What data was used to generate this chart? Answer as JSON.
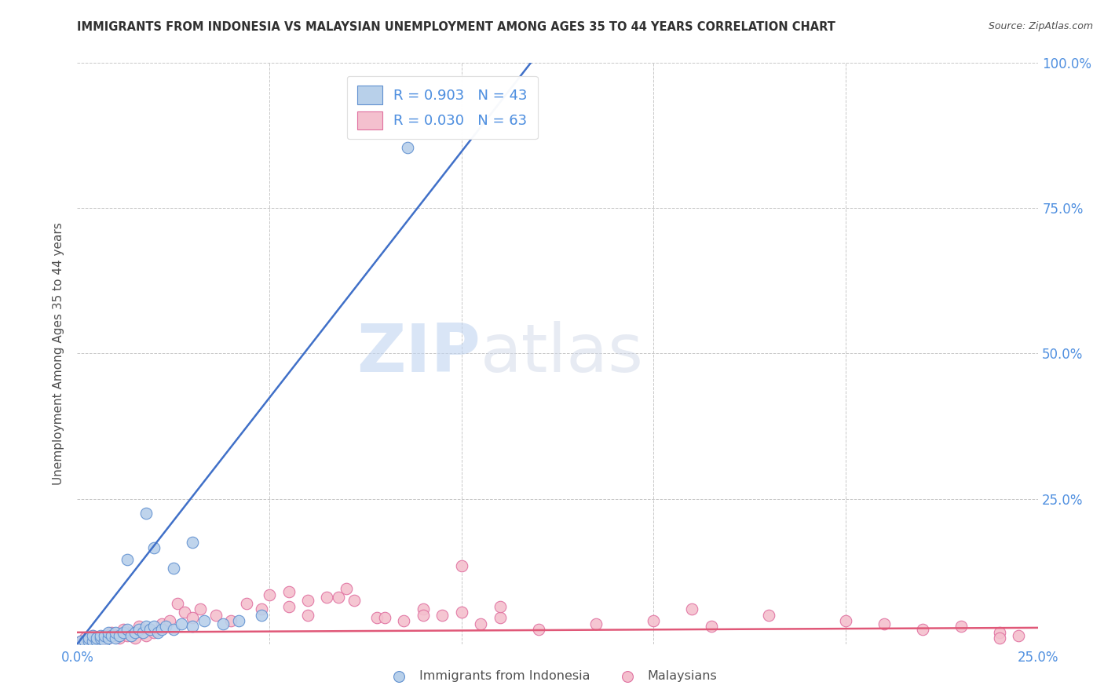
{
  "title": "IMMIGRANTS FROM INDONESIA VS MALAYSIAN UNEMPLOYMENT AMONG AGES 35 TO 44 YEARS CORRELATION CHART",
  "source": "Source: ZipAtlas.com",
  "ylabel": "Unemployment Among Ages 35 to 44 years",
  "xlim": [
    0.0,
    0.25
  ],
  "ylim": [
    0.0,
    1.0
  ],
  "watermark_zip": "ZIP",
  "watermark_atlas": "atlas",
  "legend_blue_label": "R = 0.903   N = 43",
  "legend_pink_label": "R = 0.030   N = 63",
  "legend_blue_color": "#b8d0ea",
  "legend_pink_color": "#f4c0ce",
  "blue_line_color": "#4070c8",
  "pink_line_color": "#e05878",
  "blue_scatter_facecolor": "#b8d0ea",
  "blue_scatter_edgecolor": "#6090d0",
  "pink_scatter_facecolor": "#f4c0ce",
  "pink_scatter_edgecolor": "#e070a0",
  "grid_color": "#c8c8c8",
  "background_color": "#ffffff",
  "title_color": "#303030",
  "axis_label_color": "#505050",
  "tick_color": "#5090e0",
  "blue_scatter_x": [
    0.001,
    0.002,
    0.003,
    0.003,
    0.004,
    0.004,
    0.005,
    0.005,
    0.006,
    0.006,
    0.007,
    0.007,
    0.008,
    0.008,
    0.009,
    0.01,
    0.01,
    0.011,
    0.012,
    0.013,
    0.014,
    0.015,
    0.016,
    0.017,
    0.018,
    0.019,
    0.02,
    0.021,
    0.022,
    0.023,
    0.025,
    0.027,
    0.03,
    0.033,
    0.038,
    0.042,
    0.048,
    0.013,
    0.02,
    0.025,
    0.03,
    0.018,
    0.086
  ],
  "blue_scatter_y": [
    0.005,
    0.005,
    0.005,
    0.01,
    0.005,
    0.015,
    0.005,
    0.01,
    0.01,
    0.015,
    0.005,
    0.015,
    0.01,
    0.02,
    0.015,
    0.01,
    0.02,
    0.015,
    0.02,
    0.025,
    0.015,
    0.02,
    0.025,
    0.02,
    0.03,
    0.025,
    0.03,
    0.02,
    0.025,
    0.03,
    0.025,
    0.035,
    0.03,
    0.04,
    0.035,
    0.04,
    0.05,
    0.145,
    0.165,
    0.13,
    0.175,
    0.225,
    0.855
  ],
  "pink_scatter_x": [
    0.001,
    0.002,
    0.003,
    0.004,
    0.005,
    0.006,
    0.007,
    0.008,
    0.009,
    0.01,
    0.011,
    0.012,
    0.013,
    0.014,
    0.015,
    0.016,
    0.017,
    0.018,
    0.019,
    0.02,
    0.022,
    0.024,
    0.026,
    0.028,
    0.03,
    0.032,
    0.036,
    0.04,
    0.044,
    0.048,
    0.055,
    0.06,
    0.068,
    0.072,
    0.078,
    0.085,
    0.09,
    0.095,
    0.1,
    0.105,
    0.11,
    0.12,
    0.135,
    0.15,
    0.165,
    0.18,
    0.2,
    0.21,
    0.22,
    0.23,
    0.24,
    0.245,
    0.05,
    0.055,
    0.06,
    0.065,
    0.07,
    0.08,
    0.09,
    0.1,
    0.11,
    0.16,
    0.24
  ],
  "pink_scatter_y": [
    0.005,
    0.01,
    0.005,
    0.015,
    0.01,
    0.005,
    0.015,
    0.01,
    0.02,
    0.015,
    0.01,
    0.025,
    0.015,
    0.02,
    0.01,
    0.03,
    0.02,
    0.015,
    0.025,
    0.02,
    0.035,
    0.04,
    0.07,
    0.055,
    0.045,
    0.06,
    0.05,
    0.04,
    0.07,
    0.06,
    0.065,
    0.05,
    0.08,
    0.075,
    0.045,
    0.04,
    0.06,
    0.05,
    0.055,
    0.035,
    0.045,
    0.025,
    0.035,
    0.04,
    0.03,
    0.05,
    0.04,
    0.035,
    0.025,
    0.03,
    0.02,
    0.015,
    0.085,
    0.09,
    0.075,
    0.08,
    0.095,
    0.045,
    0.05,
    0.135,
    0.065,
    0.06,
    0.01
  ],
  "blue_line_x": [
    0.0,
    0.118
  ],
  "blue_line_y": [
    0.0,
    1.0
  ],
  "pink_line_x": [
    0.0,
    0.25
  ],
  "pink_line_y": [
    0.02,
    0.028
  ]
}
